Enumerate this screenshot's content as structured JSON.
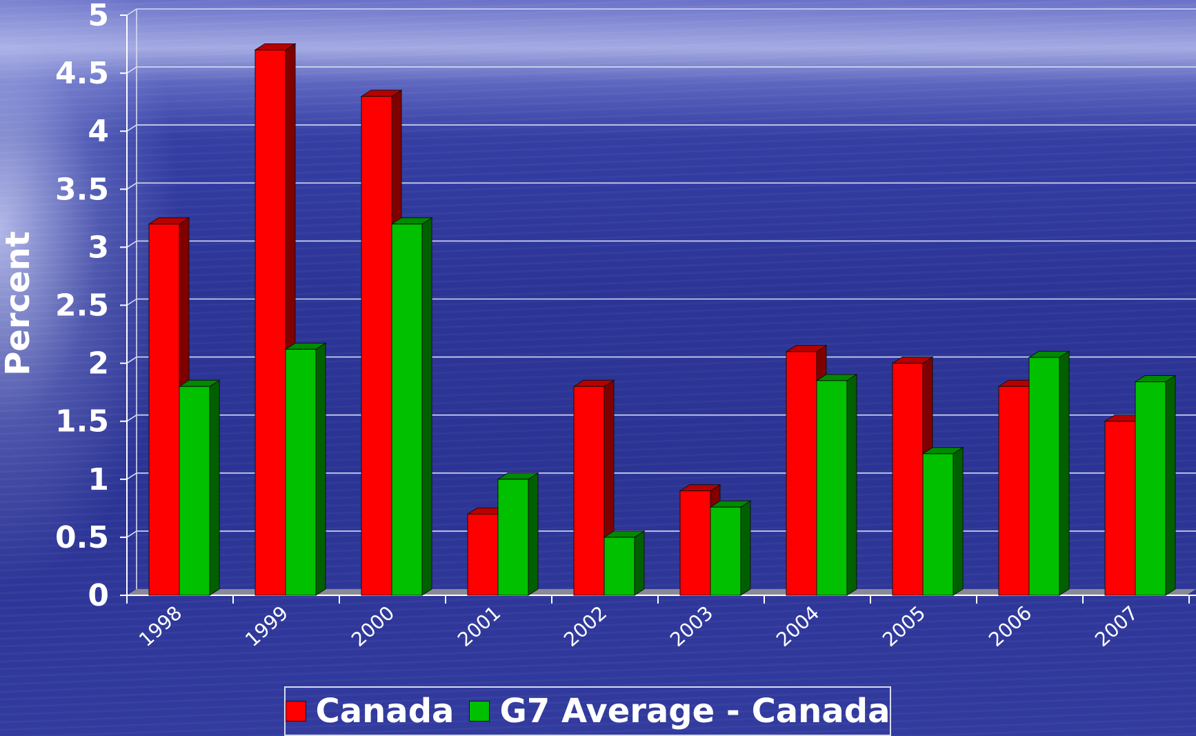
{
  "chart_data": {
    "type": "bar",
    "title": "",
    "xlabel": "",
    "ylabel": "Percent",
    "ylim": [
      0,
      5
    ],
    "yticks": [
      "0",
      "0.5",
      "1",
      "1.5",
      "2",
      "2.5",
      "3",
      "3.5",
      "4",
      "4.5",
      "5"
    ],
    "grid": true,
    "legend_position": "bottom",
    "categories": [
      "1998",
      "1999",
      "2000",
      "2001",
      "2002",
      "2003",
      "2004",
      "2005",
      "2006",
      "2007"
    ],
    "series": [
      {
        "name": "Canada",
        "color": "#ff0000",
        "values": [
          3.2,
          4.7,
          4.3,
          0.7,
          1.8,
          0.9,
          2.1,
          2.0,
          1.8,
          1.5
        ]
      },
      {
        "name": "G7 Average - Canada",
        "color": "#00c000",
        "values": [
          1.8,
          2.12,
          3.2,
          1.0,
          0.5,
          0.76,
          1.85,
          1.22,
          2.05,
          1.84
        ]
      }
    ]
  }
}
